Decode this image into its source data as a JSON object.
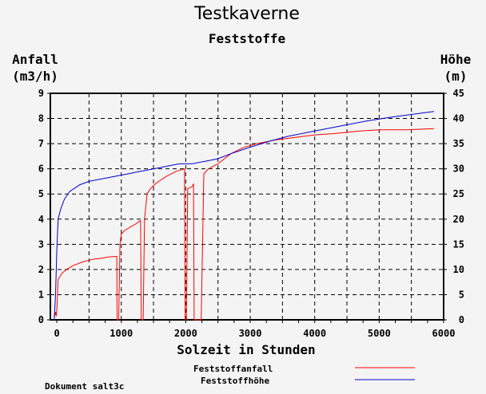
{
  "chart_data": {
    "type": "line",
    "title": "Testkaverne",
    "subtitle": "Feststoffe",
    "xlabel": "Solzeit in Stunden",
    "ylabel_left": [
      "Anfall",
      "(m3/h)"
    ],
    "ylabel_right": [
      "Höhe",
      "(m)"
    ],
    "xlim": [
      -100,
      6000
    ],
    "ylim_left": [
      0,
      9
    ],
    "ylim_right": [
      0,
      45
    ],
    "x_ticks": [
      0,
      1000,
      2000,
      3000,
      4000,
      5000,
      6000
    ],
    "y_ticks_left": [
      0,
      1,
      2,
      3,
      4,
      5,
      6,
      7,
      8,
      9
    ],
    "y_ticks_right": [
      0,
      5,
      10,
      15,
      20,
      25,
      30,
      35,
      40,
      45
    ],
    "grid": true,
    "legend_position": "bottom-right",
    "series": [
      {
        "name": "Feststoffanfall",
        "axis": "left",
        "color": "#ff0000",
        "points": [
          [
            -40,
            0.1
          ],
          [
            -20,
            0.3
          ],
          [
            -10,
            0.15
          ],
          [
            0,
            0.4
          ],
          [
            20,
            1.6
          ],
          [
            80,
            1.85
          ],
          [
            150,
            2.0
          ],
          [
            250,
            2.15
          ],
          [
            400,
            2.3
          ],
          [
            550,
            2.4
          ],
          [
            700,
            2.45
          ],
          [
            800,
            2.5
          ],
          [
            930,
            2.52
          ],
          [
            935,
            0.0
          ],
          [
            960,
            0.0
          ],
          [
            980,
            3.0
          ],
          [
            1000,
            3.4
          ],
          [
            1050,
            3.55
          ],
          [
            1150,
            3.7
          ],
          [
            1250,
            3.85
          ],
          [
            1300,
            3.95
          ],
          [
            1310,
            0.0
          ],
          [
            1340,
            0.0
          ],
          [
            1360,
            4.0
          ],
          [
            1400,
            5.0
          ],
          [
            1450,
            5.2
          ],
          [
            1550,
            5.45
          ],
          [
            1700,
            5.7
          ],
          [
            1850,
            5.9
          ],
          [
            1980,
            6.0
          ],
          [
            1990,
            0.0
          ],
          [
            2010,
            0.0
          ],
          [
            2030,
            5.2
          ],
          [
            2100,
            5.3
          ],
          [
            2120,
            5.4
          ],
          [
            2130,
            0.0
          ],
          [
            2150,
            0.0
          ],
          [
            2170,
            0.0
          ],
          [
            2200,
            0.0
          ],
          [
            2240,
            0.0
          ],
          [
            2280,
            5.8
          ],
          [
            2350,
            6.0
          ],
          [
            2500,
            6.2
          ],
          [
            2700,
            6.6
          ],
          [
            2900,
            6.85
          ],
          [
            3100,
            7.0
          ],
          [
            3400,
            7.15
          ],
          [
            3700,
            7.25
          ],
          [
            4000,
            7.35
          ],
          [
            4300,
            7.4
          ],
          [
            4700,
            7.5
          ],
          [
            5000,
            7.55
          ],
          [
            5400,
            7.55
          ],
          [
            5850,
            7.6
          ]
        ]
      },
      {
        "name": "Feststoffhöhe",
        "axis": "right",
        "color": "#0000cc",
        "points": [
          [
            -40,
            0
          ],
          [
            -20,
            5
          ],
          [
            0,
            14
          ],
          [
            20,
            20
          ],
          [
            60,
            22
          ],
          [
            120,
            24
          ],
          [
            200,
            25.5
          ],
          [
            350,
            26.8
          ],
          [
            500,
            27.5
          ],
          [
            700,
            28
          ],
          [
            900,
            28.5
          ],
          [
            1100,
            29
          ],
          [
            1300,
            29.5
          ],
          [
            1500,
            30
          ],
          [
            1700,
            30.5
          ],
          [
            1900,
            31
          ],
          [
            2100,
            31
          ],
          [
            2300,
            31.5
          ],
          [
            2500,
            32
          ],
          [
            2700,
            33
          ],
          [
            3000,
            34.3
          ],
          [
            3300,
            35.5
          ],
          [
            3600,
            36.5
          ],
          [
            4000,
            37.5
          ],
          [
            4400,
            38.5
          ],
          [
            4800,
            39.5
          ],
          [
            5200,
            40.3
          ],
          [
            5500,
            40.8
          ],
          [
            5850,
            41.4
          ]
        ]
      }
    ]
  },
  "legend": {
    "items": [
      {
        "label": "Feststoffanfall",
        "color": "#ff0000"
      },
      {
        "label": "Feststoffhöhe",
        "color": "#0000cc"
      }
    ]
  },
  "footer": {
    "document": "Dokument salt3c"
  }
}
